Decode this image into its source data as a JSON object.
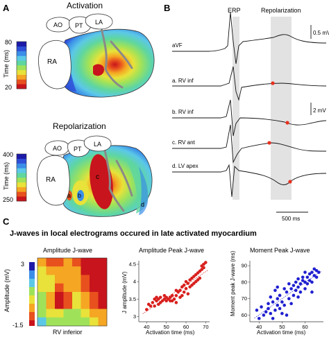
{
  "panels": {
    "a": "A",
    "b": "B",
    "c": "C"
  },
  "panel_a": {
    "activation": {
      "title": "Activation",
      "colorbar_ticks": [
        "80",
        "20"
      ],
      "colorbar_label": "Time (ms)",
      "chamber_labels": {
        "ao": "AO",
        "pt": "PT",
        "la": "LA",
        "ra": "RA"
      }
    },
    "repolarization": {
      "title": "Repolarization",
      "colorbar_ticks": [
        "400",
        "250"
      ],
      "colorbar_label": "Time (ms)",
      "chamber_labels": {
        "ao": "AO",
        "pt": "PT",
        "la": "LA",
        "ra": "RA"
      },
      "site_labels": {
        "a": "a",
        "b": "b",
        "c": "c",
        "d": "d"
      }
    },
    "colors": {
      "scale": [
        "#1d1aa8",
        "#2e4fd8",
        "#3b8ee8",
        "#5cc8e8",
        "#5fd6a0",
        "#9fe25a",
        "#e8e23a",
        "#f5a623",
        "#e8501e",
        "#c8141c"
      ]
    }
  },
  "panel_b": {
    "erp_label": "ERP",
    "repol_label": "Repolarization",
    "scale_top": "0.5 mV",
    "scale_mid": "2 mV",
    "time_scale": "500 ms",
    "traces": [
      "aVF",
      "a. RV inf",
      "b. RV inf",
      "c. RV ant",
      "d. LV apex"
    ],
    "marker_color": "#e8301e"
  },
  "panel_c": {
    "heading": "J-waves in local electrograms occured in late activated myocardium",
    "heatmap": {
      "title": "Amplitude J-wave",
      "ylabel": "Amplitude (mV)",
      "xlabel": "RV inferior",
      "cb_top": "3",
      "cb_bottom": "-1.5"
    },
    "scatter1": {
      "title": "Amplitude Peak J-wave",
      "ylabel": "J amplitude (mV)",
      "xlabel": "Activation time (ms)",
      "color": "#d8201e"
    },
    "scatter2": {
      "title": "Moment Peak J-wave",
      "ylabel": "Moment peak J-wave (ms)",
      "xlabel": "Activation time (ms)",
      "color": "#2020d0"
    }
  },
  "chart_data": [
    {
      "type": "scatter",
      "title": "Amplitude Peak J-wave",
      "xlabel": "Activation time (ms)",
      "ylabel": "J amplitude (mV)",
      "xlim": [
        36,
        72
      ],
      "ylim": [
        2.85,
        4.6
      ],
      "xticks": [
        40,
        50,
        60,
        70
      ],
      "yticks": [
        3,
        3.5,
        4,
        4.5
      ],
      "trendline": true,
      "points": [
        [
          40,
          3.2
        ],
        [
          41,
          3.35
        ],
        [
          42,
          3.3
        ],
        [
          43,
          3.4
        ],
        [
          44,
          3.5
        ],
        [
          45,
          3.55
        ],
        [
          45,
          3.45
        ],
        [
          46,
          3.5
        ],
        [
          47,
          3.55
        ],
        [
          47,
          3.4
        ],
        [
          48,
          3.45
        ],
        [
          49,
          3.5
        ],
        [
          50,
          3.55
        ],
        [
          50,
          3.45
        ],
        [
          51,
          3.5
        ],
        [
          52,
          3.55
        ],
        [
          52,
          3.45
        ],
        [
          53,
          3.6
        ],
        [
          54,
          3.5
        ],
        [
          55,
          3.6
        ],
        [
          55,
          3.4
        ],
        [
          56,
          3.7
        ],
        [
          57,
          3.75
        ],
        [
          57,
          3.55
        ],
        [
          58,
          3.85
        ],
        [
          58,
          3.6
        ],
        [
          59,
          3.9
        ],
        [
          59,
          3.7
        ],
        [
          60,
          4.0
        ],
        [
          60,
          3.8
        ],
        [
          61,
          3.95
        ],
        [
          61,
          3.65
        ],
        [
          62,
          4.05
        ],
        [
          62,
          3.85
        ],
        [
          63,
          4.1
        ],
        [
          63,
          3.9
        ],
        [
          64,
          4.15
        ],
        [
          64,
          3.95
        ],
        [
          65,
          4.2
        ],
        [
          65,
          4.0
        ],
        [
          66,
          4.25
        ],
        [
          66,
          4.05
        ],
        [
          67,
          4.3
        ],
        [
          67,
          4.1
        ],
        [
          68,
          4.35
        ],
        [
          68,
          4.45
        ],
        [
          69,
          4.4
        ],
        [
          69,
          4.5
        ],
        [
          70,
          4.55
        ],
        [
          55,
          3.75
        ],
        [
          53,
          3.45
        ],
        [
          49,
          3.6
        ],
        [
          46,
          3.35
        ],
        [
          44,
          3.3
        ]
      ]
    },
    {
      "type": "scatter",
      "title": "Moment Peak J-wave",
      "xlabel": "Activation time (ms)",
      "ylabel": "Moment peak J-wave (ms)",
      "xlim": [
        36,
        68
      ],
      "ylim": [
        56,
        93
      ],
      "xticks": [
        40,
        50,
        60
      ],
      "yticks": [
        60,
        70,
        80,
        90
      ],
      "trendline": true,
      "points": [
        [
          39,
          63
        ],
        [
          40,
          58
        ],
        [
          41,
          65
        ],
        [
          42,
          60
        ],
        [
          43,
          62
        ],
        [
          44,
          67
        ],
        [
          44,
          64
        ],
        [
          45,
          71
        ],
        [
          45,
          61
        ],
        [
          46,
          68
        ],
        [
          46,
          58
        ],
        [
          47,
          75
        ],
        [
          47,
          63
        ],
        [
          48,
          70
        ],
        [
          48,
          66
        ],
        [
          49,
          72
        ],
        [
          49,
          64
        ],
        [
          50,
          61
        ],
        [
          50,
          68
        ],
        [
          51,
          76
        ],
        [
          51,
          66
        ],
        [
          52,
          74
        ],
        [
          53,
          70
        ],
        [
          53,
          79
        ],
        [
          54,
          76
        ],
        [
          55,
          72
        ],
        [
          55,
          78
        ],
        [
          56,
          80
        ],
        [
          56,
          75
        ],
        [
          57,
          77
        ],
        [
          57,
          82
        ],
        [
          58,
          79
        ],
        [
          58,
          74
        ],
        [
          59,
          81
        ],
        [
          59,
          83
        ],
        [
          60,
          80
        ],
        [
          60,
          76
        ],
        [
          61,
          83
        ],
        [
          61,
          79
        ],
        [
          62,
          85
        ],
        [
          62,
          81
        ],
        [
          63,
          86
        ],
        [
          63,
          80
        ],
        [
          64,
          84
        ],
        [
          64,
          88
        ],
        [
          65,
          87
        ],
        [
          65,
          83
        ],
        [
          66,
          86
        ],
        [
          52,
          60
        ],
        [
          54,
          67
        ],
        [
          48,
          77
        ],
        [
          57,
          71
        ],
        [
          60,
          86
        ],
        [
          63,
          74
        ]
      ]
    },
    {
      "type": "heatmap",
      "title": "Amplitude J-wave",
      "xlabel": "RV inferior",
      "ylabel": "Amplitude (mV)",
      "zlim": [
        -1.5,
        3
      ],
      "grid": [
        [
          0.0,
          0.2,
          0.6,
          0.4,
          0.2,
          0.6,
          1.0,
          1.6
        ],
        [
          0.2,
          0.8,
          1.2,
          0.6,
          0.4,
          1.0,
          1.4,
          2.0
        ],
        [
          0.4,
          1.4,
          2.8,
          2.6,
          0.8,
          1.4,
          2.4,
          2.8
        ],
        [
          0.6,
          1.6,
          3.0,
          2.4,
          1.0,
          1.8,
          2.6,
          2.9
        ],
        [
          0.8,
          1.2,
          2.6,
          1.8,
          1.4,
          2.2,
          2.8,
          3.0
        ],
        [
          1.0,
          1.0,
          2.0,
          1.6,
          1.6,
          2.6,
          2.9,
          3.0
        ],
        [
          1.2,
          1.4,
          1.6,
          1.8,
          2.0,
          2.8,
          3.0,
          3.0
        ],
        [
          2.0,
          2.6,
          2.2,
          1.8,
          2.2,
          2.8,
          2.9,
          2.9
        ]
      ]
    }
  ]
}
